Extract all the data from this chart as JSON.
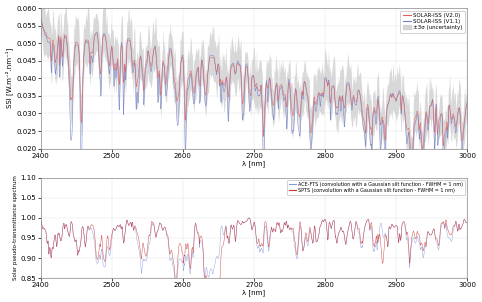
{
  "top_panel": {
    "xlim": [
      2400,
      3000
    ],
    "ylim": [
      0.02,
      0.06
    ],
    "yticks": [
      0.02,
      0.025,
      0.03,
      0.035,
      0.04,
      0.045,
      0.05,
      0.055,
      0.06
    ],
    "xticks": [
      2400,
      2500,
      2600,
      2700,
      2800,
      2900,
      3000
    ],
    "ylabel": "SSI [W.m⁻².nm⁻¹]",
    "xlabel": "λ [nm]",
    "legend": [
      "SOLAR-ISS (V2.0)",
      "SOLAR-ISS (V1.1)",
      "±3σ (uncertainty)"
    ],
    "line_red_color": "#e06060",
    "line_blue_color": "#7080cc",
    "shade_color": "#cccccc",
    "bg_color": "#ffffff"
  },
  "bottom_panel": {
    "xlim": [
      2400,
      3000
    ],
    "ylim": [
      0.85,
      1.1
    ],
    "yticks": [
      0.85,
      0.9,
      0.95,
      1.0,
      1.05,
      1.1
    ],
    "xticks": [
      2400,
      2500,
      2600,
      2700,
      2800,
      2900,
      3000
    ],
    "ylabel": "Solar pseudo-transmittance spectrum",
    "xlabel": "λ [nm]",
    "legend": [
      "ACE-FTS (convolution with a Gaussian slit function - FWHM = 1 nm)",
      "SPTS (convolution with a Gaussian slit function - FWHM = 1 nm)"
    ],
    "line_blue_color": "#8899dd",
    "line_red_color": "#cc3333",
    "bg_color": "#ffffff"
  }
}
